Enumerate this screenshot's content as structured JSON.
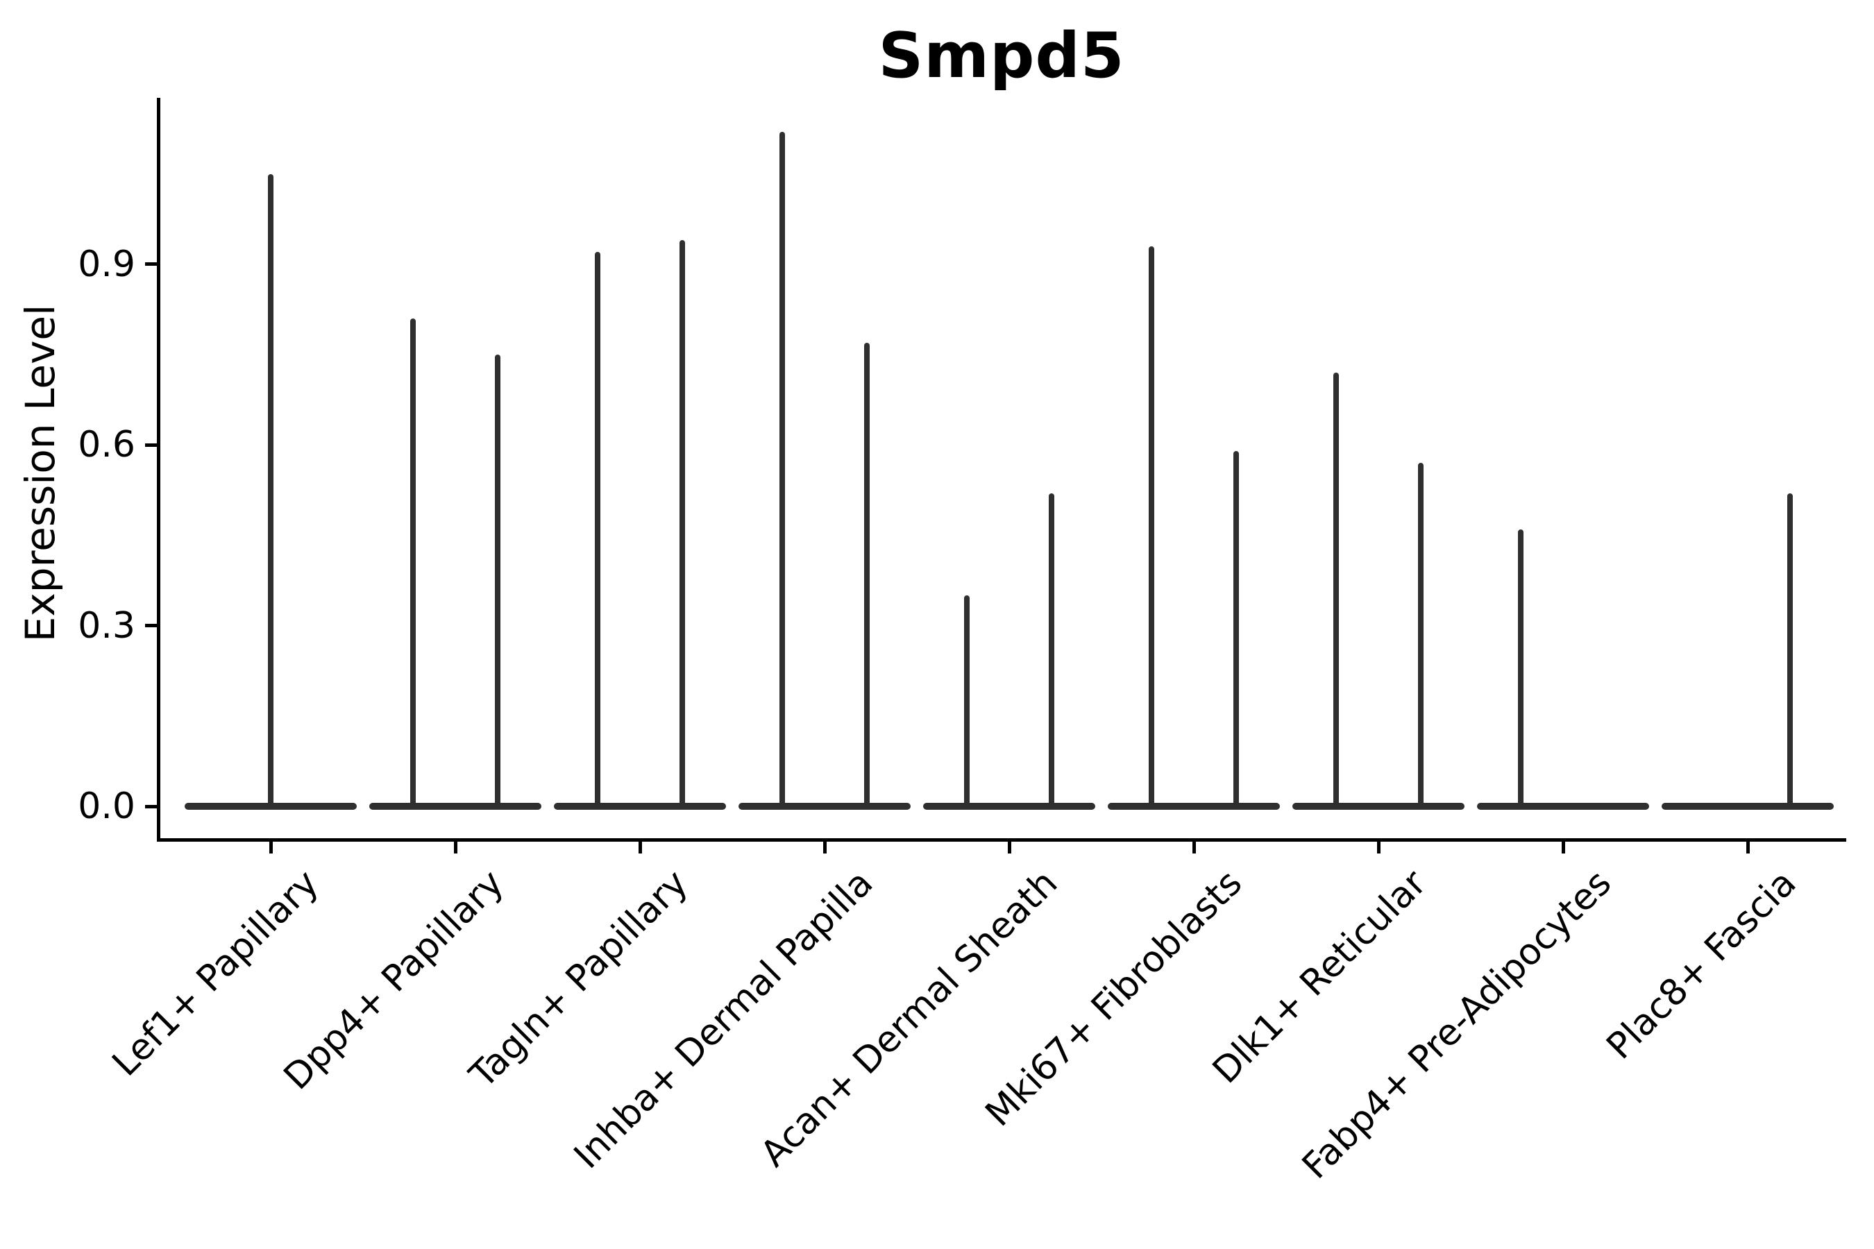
{
  "chart_data": {
    "type": "violin",
    "title": "Smpd5",
    "ylabel": "Expression Level",
    "xlabel": "",
    "ytick_labels": [
      "0.0",
      "0.3",
      "0.6",
      "0.9"
    ],
    "ytick_values": [
      0.0,
      0.3,
      0.6,
      0.9
    ],
    "ylim": [
      0.0,
      1.17
    ],
    "grid": false,
    "legend_position": "none",
    "description": "Sparse single-cell expression violins: each category shows a wide flat violin base at 0 with thin spikes rising to the maximum expression of the few expressing cells; most categories contain two side-by-side (dodged) violins.",
    "categories": [
      "Lef1+ Papillary",
      "Dpp4+ Papillary",
      "Tagln+ Papillary",
      "Inhba+ Dermal Papilla",
      "Acan+ Dermal Sheath",
      "Mki67+ Fibroblasts",
      "Dlk1+ Reticular",
      "Fabp4+ Pre-Adipocytes",
      "Plac8+ Fascia"
    ],
    "violins": [
      {
        "category": "Lef1+ Papillary",
        "spikes": [
          {
            "position": "center",
            "peak": 1.05
          }
        ]
      },
      {
        "category": "Dpp4+ Papillary",
        "spikes": [
          {
            "position": "left",
            "peak": 0.81
          },
          {
            "position": "right",
            "peak": 0.75
          }
        ]
      },
      {
        "category": "Tagln+ Papillary",
        "spikes": [
          {
            "position": "left",
            "peak": 0.92
          },
          {
            "position": "right",
            "peak": 0.94
          }
        ]
      },
      {
        "category": "Inhba+ Dermal Papilla",
        "spikes": [
          {
            "position": "left",
            "peak": 1.12
          },
          {
            "position": "right",
            "peak": 0.77
          }
        ]
      },
      {
        "category": "Acan+ Dermal Sheath",
        "spikes": [
          {
            "position": "left",
            "peak": 0.35
          },
          {
            "position": "right",
            "peak": 0.52
          }
        ]
      },
      {
        "category": "Mki67+ Fibroblasts",
        "spikes": [
          {
            "position": "left",
            "peak": 0.93
          },
          {
            "position": "right",
            "peak": 0.59
          }
        ]
      },
      {
        "category": "Dlk1+ Reticular",
        "spikes": [
          {
            "position": "left",
            "peak": 0.72
          },
          {
            "position": "right",
            "peak": 0.57
          }
        ]
      },
      {
        "category": "Fabp4+ Pre-Adipocytes",
        "spikes": [
          {
            "position": "left",
            "peak": 0.46
          }
        ]
      },
      {
        "category": "Plac8+ Fascia",
        "spikes": [
          {
            "position": "right",
            "peak": 0.52
          }
        ]
      }
    ],
    "colors": {
      "violin": "#2f2f2f",
      "axis": "#000000",
      "text": "#000000",
      "background": "#ffffff"
    }
  }
}
